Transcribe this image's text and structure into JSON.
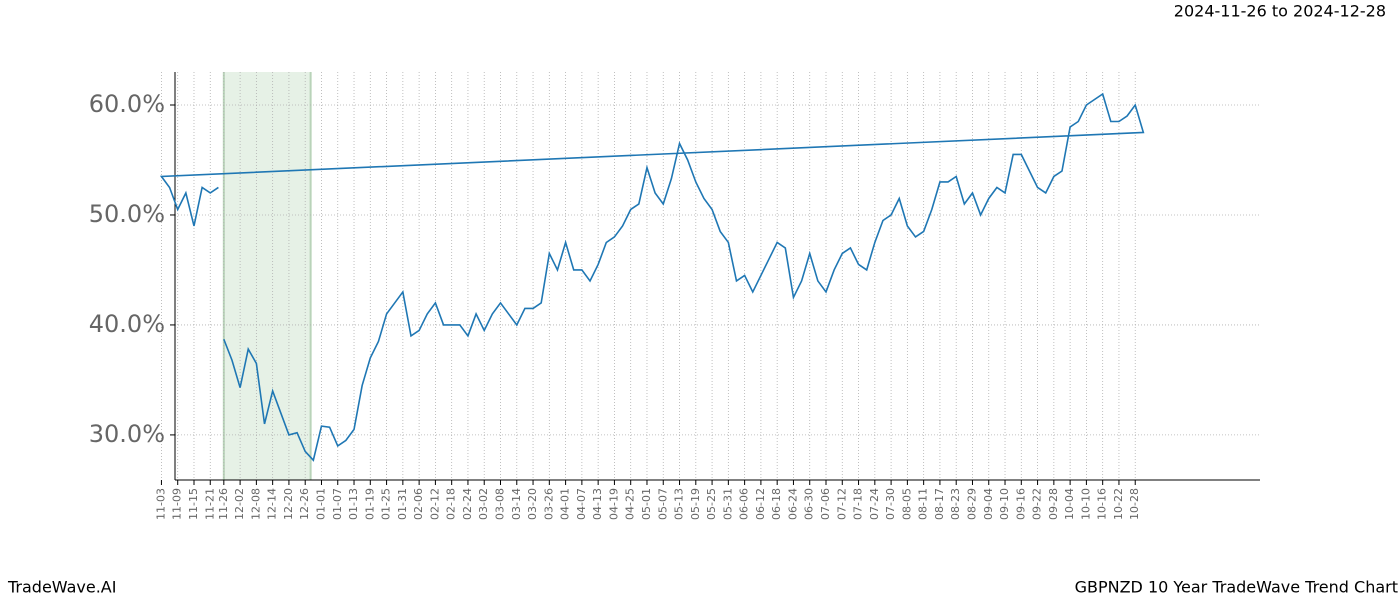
{
  "chart_data": {
    "type": "line",
    "subtitle": "2024-11-26 to 2024-12-28",
    "footer_left": "TradeWave.AI",
    "title": "GBPNZD 10 Year TradeWave Trend Chart",
    "highlight": [
      "11-26",
      "12-28"
    ],
    "x": [
      "11-26",
      "11-29",
      "12-02",
      "12-05",
      "12-08",
      "12-11",
      "12-14",
      "12-17",
      "12-20",
      "12-23",
      "12-26",
      "12-29",
      "01-01",
      "01-04",
      "01-07",
      "01-10",
      "01-13",
      "01-16",
      "01-19",
      "01-22",
      "01-25",
      "01-28",
      "01-31",
      "02-03",
      "02-06",
      "02-09",
      "02-12",
      "02-15",
      "02-18",
      "02-21",
      "02-24",
      "02-27",
      "03-02",
      "03-05",
      "03-08",
      "03-11",
      "03-14",
      "03-17",
      "03-20",
      "03-23",
      "03-26",
      "03-29",
      "04-01",
      "04-04",
      "04-07",
      "04-10",
      "04-13",
      "04-16",
      "04-19",
      "04-22",
      "04-25",
      "04-28",
      "05-01",
      "05-04",
      "05-07",
      "05-10",
      "05-13",
      "05-16",
      "05-19",
      "05-22",
      "05-25",
      "05-28",
      "05-31",
      "06-03",
      "06-06",
      "06-09",
      "06-12",
      "06-15",
      "06-18",
      "06-21",
      "06-24",
      "06-27",
      "06-30",
      "07-03",
      "07-06",
      "07-09",
      "07-12",
      "07-15",
      "07-18",
      "07-21",
      "07-24",
      "07-27",
      "07-30",
      "08-02",
      "08-05",
      "08-08",
      "08-11",
      "08-14",
      "08-17",
      "08-20",
      "08-23",
      "08-26",
      "08-29",
      "09-01",
      "09-04",
      "09-07",
      "09-10",
      "09-13",
      "09-16",
      "09-19",
      "09-22",
      "09-25",
      "09-28",
      "10-01",
      "10-04",
      "10-07",
      "10-10",
      "10-13",
      "10-16",
      "10-19",
      "10-22",
      "10-25",
      "10-28",
      "10-31",
      "11-03",
      "11-06",
      "11-09",
      "11-12",
      "11-15",
      "11-18",
      "11-21",
      "11-24"
    ],
    "series": [
      {
        "color": "#1f77b4",
        "values": [
          38.7,
          36.8,
          34.3,
          37.8,
          36.5,
          31.0,
          34.0,
          32.0,
          30.0,
          30.2,
          28.5,
          27.7,
          30.8,
          30.7,
          29.0,
          29.5,
          30.5,
          34.5,
          37.0,
          38.5,
          41.0,
          42.0,
          43.0,
          39.0,
          39.5,
          41.0,
          42.0,
          40.0,
          40.0,
          40.0,
          39.0,
          41.0,
          39.5,
          41.0,
          42.0,
          41.0,
          40.0,
          41.5,
          41.5,
          42.0,
          46.5,
          45.0,
          47.5,
          45.0,
          45.0,
          44.0,
          45.5,
          47.5,
          48.0,
          49.0,
          50.5,
          51.0,
          54.3,
          52.0,
          51.0,
          53.3,
          56.5,
          55.0,
          53.0,
          51.5,
          50.5,
          48.5,
          47.5,
          44.0,
          44.5,
          43.0,
          44.5,
          46.0,
          47.5,
          47.0,
          42.5,
          44.0,
          46.5,
          44.0,
          43.0,
          45.0,
          46.5,
          47.0,
          45.5,
          45.0,
          47.5,
          49.5,
          50.0,
          51.5,
          49.0,
          48.0,
          48.5,
          50.5,
          53.0,
          53.0,
          53.5,
          51.0,
          52.0,
          50.0,
          51.5,
          52.5,
          52.0,
          55.5,
          55.5,
          54.0,
          52.5,
          52.0,
          53.5,
          54.0,
          58.0,
          58.5,
          60.0,
          60.5,
          61.0,
          58.5,
          58.5,
          59.0,
          60.0,
          57.5,
          53.5,
          52.5,
          50.5,
          52.0,
          49.0,
          52.5,
          52.0,
          52.5
        ]
      }
    ],
    "xticks": [
      "11-26",
      "12-02",
      "12-08",
      "12-14",
      "12-20",
      "12-26",
      "01-01",
      "01-07",
      "01-13",
      "01-19",
      "01-25",
      "01-31",
      "02-06",
      "02-12",
      "02-18",
      "02-24",
      "03-02",
      "03-08",
      "03-14",
      "03-20",
      "03-26",
      "04-01",
      "04-07",
      "04-13",
      "04-19",
      "04-25",
      "05-01",
      "05-07",
      "05-13",
      "05-19",
      "05-25",
      "05-31",
      "06-06",
      "06-12",
      "06-18",
      "06-24",
      "06-30",
      "07-06",
      "07-12",
      "07-18",
      "07-24",
      "07-30",
      "08-05",
      "08-11",
      "08-17",
      "08-23",
      "08-29",
      "09-04",
      "09-10",
      "09-16",
      "09-22",
      "09-28",
      "10-04",
      "10-10",
      "10-16",
      "10-22",
      "10-28",
      "11-03",
      "11-09",
      "11-15",
      "11-21"
    ],
    "ylim": [
      25.9,
      63.0
    ],
    "yticks": [
      {
        "value": 30,
        "label": "30.0%"
      },
      {
        "value": 40,
        "label": "40.0%"
      },
      {
        "value": 50,
        "label": "50.0%"
      },
      {
        "value": 60,
        "label": "60.0%"
      }
    ],
    "grid": true
  }
}
